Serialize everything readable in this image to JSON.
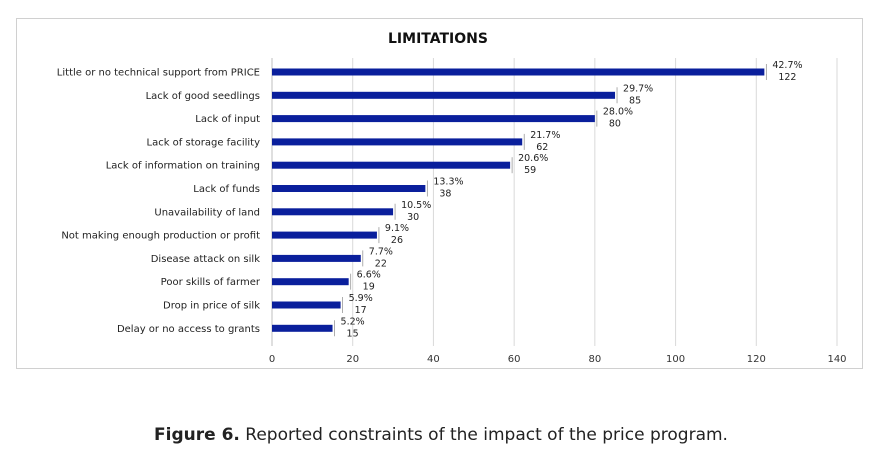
{
  "chart_data": {
    "type": "bar",
    "orientation": "horizontal",
    "title": "LIMITATIONS",
    "categories": [
      "Little or no technical support from PRICE",
      "Lack of good seedlings",
      "Lack of input",
      "Lack of storage facility",
      "Lack of information on training",
      "Lack of funds",
      "Unavailability of land",
      "Not making enough production or profit",
      "Disease attack on silk",
      "Poor skills of farmer",
      "Drop in price of silk",
      "Delay or no access to grants"
    ],
    "values": [
      122,
      85,
      80,
      62,
      59,
      38,
      30,
      26,
      22,
      19,
      17,
      15
    ],
    "percent_labels": [
      "42.7%",
      "29.7%",
      "28.0%",
      "21.7%",
      "20.6%",
      "13.3%",
      "10.5%",
      "9.1%",
      "7.7%",
      "6.6%",
      "5.9%",
      "5.2%"
    ],
    "xlim": [
      0,
      140
    ],
    "xticks": [
      0,
      20,
      40,
      60,
      80,
      100,
      120,
      140
    ],
    "xlabel": "",
    "ylabel": "",
    "grid": "vertical",
    "bar_color": "#0a1f9c"
  },
  "caption": {
    "label": "Figure 6.",
    "text": " Reported constraints of the impact of the price program."
  }
}
